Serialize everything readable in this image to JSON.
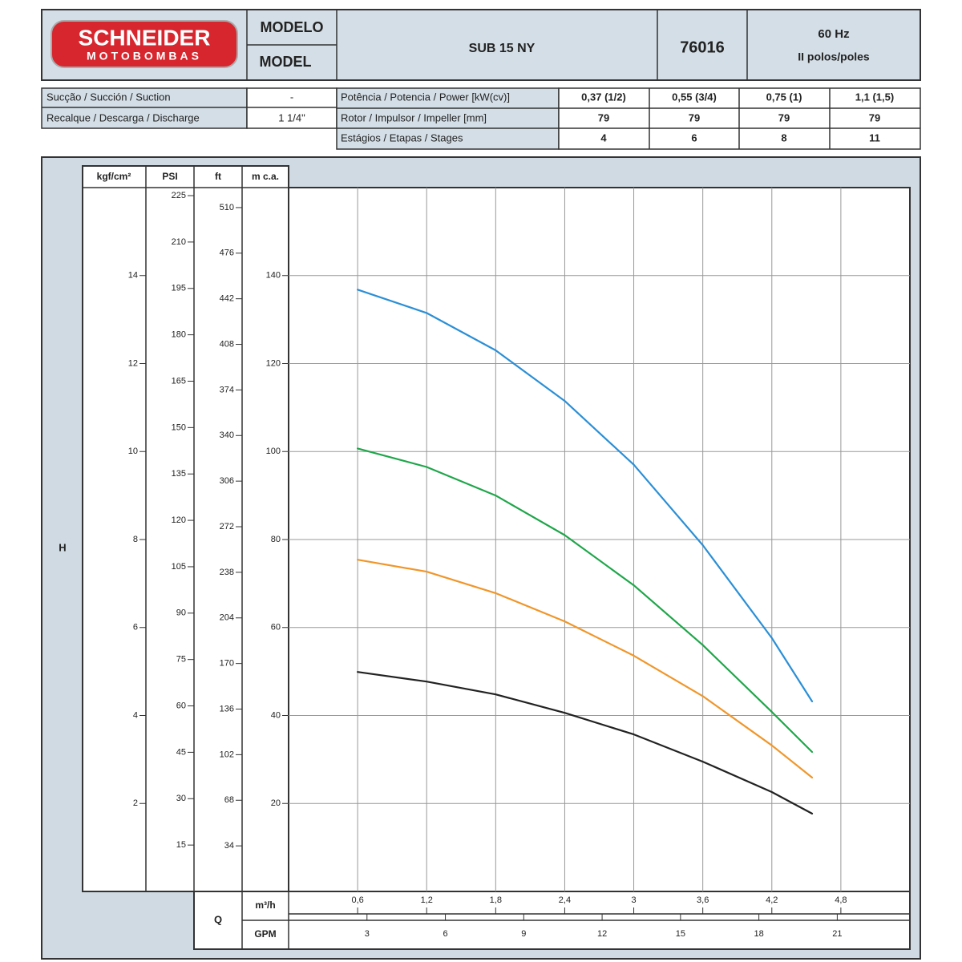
{
  "header": {
    "brand": "SCHNEIDER",
    "brand_sub": "MOTOBOMBAS",
    "model_label_pt": "MODELO",
    "model_label_en": "MODEL",
    "model": "SUB 15 NY",
    "code": "76016",
    "frequency": "60 Hz",
    "poles": "II polos/poles"
  },
  "connections": [
    {
      "label": "Sucção / Succión / Suction",
      "value": "-"
    },
    {
      "label": "Recalque / Descarga / Discharge",
      "value": "1 1/4\""
    }
  ],
  "specs": {
    "power_label": "Potência / Potencia / Power [kW(cv)]",
    "rotor_label": "Rotor / Impulsor / Impeller [mm]",
    "rotor": [
      79,
      79,
      79,
      79
    ],
    "stages_label": "Estágios / Etapas / Stages",
    "stages": [
      4,
      6,
      8,
      11
    ]
  },
  "chart_data": {
    "type": "line",
    "y_label": "H",
    "flow_label": "Q",
    "y_axis_label": "m c.a.",
    "x_label": "m³/h",
    "x2_label": "GPM",
    "grid": true,
    "xlim": [
      0,
      5.4
    ],
    "xticks": [
      {
        "value": 0.6,
        "label": "0,6"
      },
      {
        "value": 1.2,
        "label": "1,2"
      },
      {
        "value": 1.8,
        "label": "1,8"
      },
      {
        "value": 2.4,
        "label": "2,4"
      },
      3,
      {
        "value": 3.6,
        "label": "3,6"
      },
      {
        "value": 4.2,
        "label": "4,2"
      },
      {
        "value": 4.8,
        "label": "4,8"
      }
    ],
    "x2lim": [
      0,
      23.78
    ],
    "x2ticks": [
      3,
      6,
      9,
      12,
      15,
      18,
      21
    ],
    "ylim": [
      0,
      160
    ],
    "yticks": [
      20,
      40,
      60,
      80,
      100,
      120,
      140
    ],
    "aux_axes": [
      {
        "label": "kgf/cm²",
        "lim": [
          0,
          16
        ],
        "ticks": [
          2,
          4,
          6,
          8,
          10,
          12,
          14
        ]
      },
      {
        "label": "PSI",
        "lim": [
          0,
          227.6
        ],
        "ticks": [
          15,
          30,
          45,
          60,
          75,
          90,
          105,
          120,
          135,
          150,
          165,
          180,
          195,
          210,
          225
        ]
      },
      {
        "label": "ft",
        "lim": [
          0,
          524.9
        ],
        "ticks": [
          34,
          68,
          102,
          136,
          170,
          204,
          238,
          272,
          306,
          340,
          374,
          408,
          442,
          476,
          510
        ]
      }
    ],
    "x": [
      0.6,
      1.2,
      1.8,
      2.4,
      3.0,
      3.6,
      4.2,
      4.55
    ],
    "series": [
      {
        "name": "0,37 (1/2)",
        "color": "#222222",
        "values": [
          49.9,
          47.7,
          44.8,
          40.6,
          35.7,
          29.5,
          22.6,
          17.7
        ]
      },
      {
        "name": "0,55 (3/4)",
        "color": "#f0962a",
        "values": [
          75.4,
          72.7,
          67.8,
          61.4,
          53.6,
          44.4,
          33.2,
          25.9
        ]
      },
      {
        "name": "0,75 (1)",
        "color": "#1fa64a",
        "values": [
          100.7,
          96.5,
          90.0,
          81.0,
          69.6,
          56.0,
          40.8,
          31.7
        ]
      },
      {
        "name": "1,1 (1,5)",
        "color": "#2b8fd6",
        "values": [
          136.8,
          131.5,
          123.0,
          111.5,
          97.0,
          78.7,
          57.6,
          43.2
        ]
      }
    ]
  }
}
